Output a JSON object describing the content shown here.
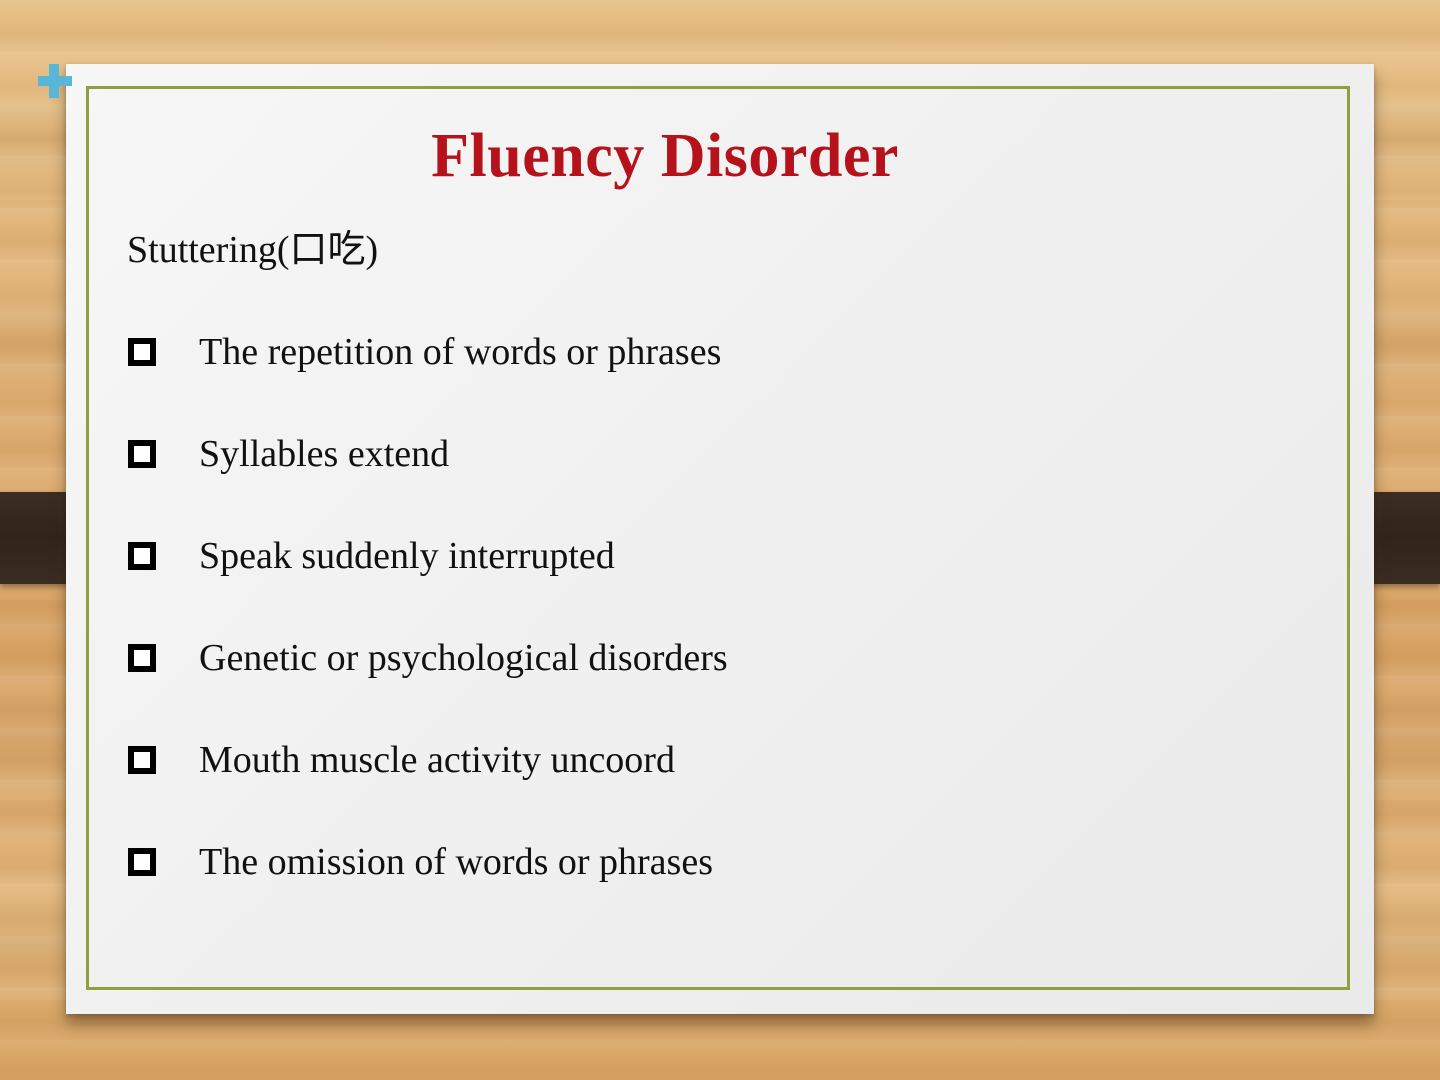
{
  "slide": {
    "title": "Fluency Disorder",
    "subtitle": "Stuttering(口吃)",
    "bullets": [
      "The repetition of words or phrases",
      "Syllables extend",
      "Speak suddenly interrupted",
      "Genetic or psychological disorders",
      "Mouth muscle activity uncoord",
      "The omission of words or phrases"
    ]
  },
  "colors": {
    "title": "#b5121b",
    "frame_border": "#8fa03e",
    "plus_icon": "#5ab6d9",
    "strap": "#30241b"
  },
  "icons": {
    "corner": "plus-icon",
    "bullet": "square-bullet-icon"
  }
}
